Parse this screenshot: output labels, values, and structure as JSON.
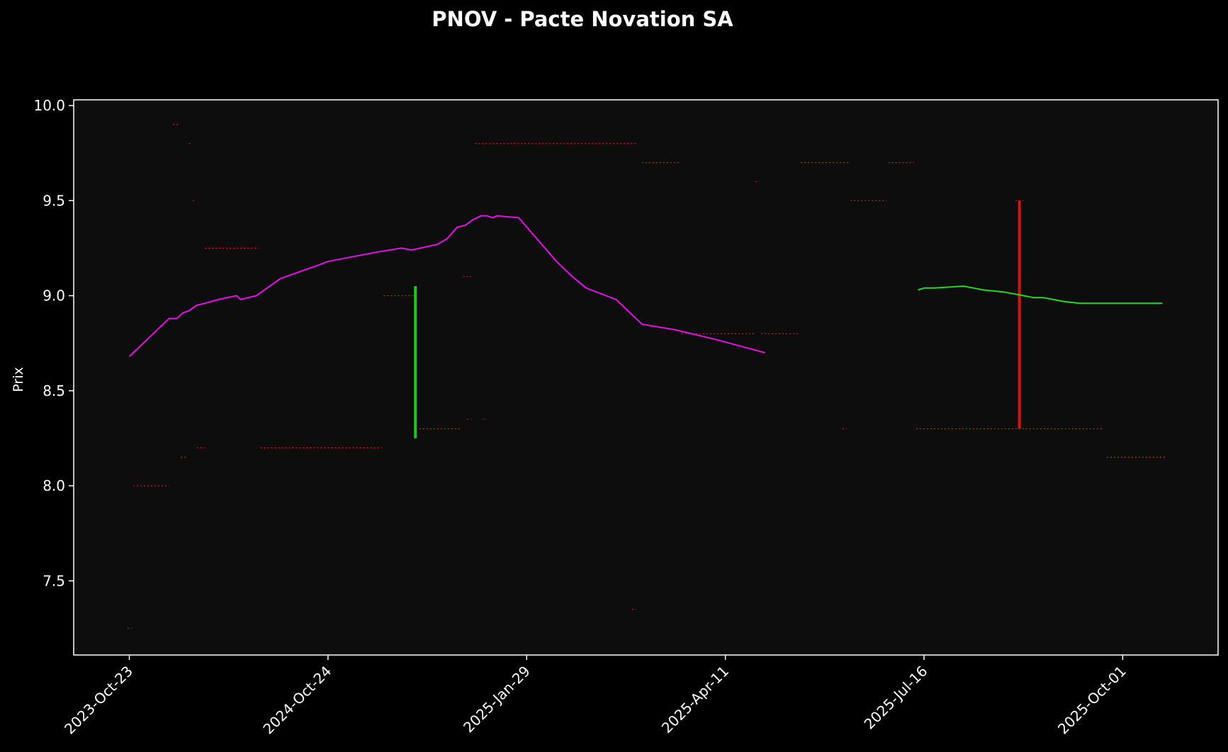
{
  "chart_data": {
    "type": "line",
    "title": "PNOV - Pacte Novation SA",
    "xlabel": "",
    "ylabel": "Prix",
    "x_tick_labels": [
      "2023-Oct-23",
      "2024-Oct-24",
      "2025-Jan-29",
      "2025-Apr-11",
      "2025-Jul-16",
      "2025-Oct-01"
    ],
    "x_axis_positions": {
      "first_tick": 0,
      "last_tick": 5,
      "range": [
        -0.28,
        5.48
      ]
    },
    "y_ticks": [
      7.5,
      8.0,
      8.5,
      9.0,
      9.5,
      10.0
    ],
    "y_tick_labels": [
      "7.5",
      "8.0",
      "8.5",
      "9.0",
      "9.5",
      "10.0"
    ],
    "ylim": [
      7.11,
      10.03
    ],
    "grid": false,
    "legend": "none",
    "colors": {
      "background": "#000000",
      "plot_background": "#0d0d0d",
      "axes": "#ffffff",
      "magenta_series": "#e60ee6",
      "green_series": "#1fdc1f",
      "green_bar": "#1ec81e",
      "red_bar": "#d21414",
      "red_levels": "#e61919"
    },
    "series": [
      {
        "color": "#e60ee6",
        "x": [
          0.0,
          0.02,
          0.2,
          0.24,
          0.27,
          0.3,
          0.34,
          0.38,
          0.45,
          0.54,
          0.56,
          0.6,
          0.64,
          0.76,
          0.95,
          1.0,
          1.1,
          1.2,
          1.25,
          1.37,
          1.42,
          1.55,
          1.6,
          1.65,
          1.69,
          1.73,
          1.77,
          1.8,
          1.83,
          1.85,
          1.96,
          2.15,
          2.23,
          2.3,
          2.45,
          2.58,
          2.75,
          2.95,
          3.2
        ],
        "values": [
          8.68,
          8.7,
          8.88,
          8.88,
          8.91,
          8.92,
          8.95,
          8.96,
          8.98,
          9.0,
          8.98,
          8.99,
          9.0,
          9.09,
          9.16,
          9.18,
          9.2,
          9.22,
          9.23,
          9.25,
          9.24,
          9.27,
          9.3,
          9.36,
          9.37,
          9.4,
          9.42,
          9.42,
          9.41,
          9.42,
          9.41,
          9.18,
          9.1,
          9.04,
          8.98,
          8.85,
          8.82,
          8.77,
          8.7
        ]
      },
      {
        "color": "#1fdc1f",
        "x": [
          3.97,
          4.0,
          4.05,
          4.2,
          4.25,
          4.3,
          4.4,
          4.5,
          4.55,
          4.6,
          4.65,
          4.7,
          4.78,
          4.85,
          5.0,
          5.2
        ],
        "values": [
          9.03,
          9.04,
          9.04,
          9.05,
          9.04,
          9.03,
          9.02,
          9.0,
          8.99,
          8.99,
          8.98,
          8.97,
          8.96,
          8.96,
          8.96,
          8.96
        ]
      }
    ],
    "bars": [
      {
        "x": 1.44,
        "low": 8.25,
        "high": 9.05,
        "color": "#1ec81e"
      },
      {
        "x": 4.48,
        "low": 8.3,
        "high": 9.5,
        "color": "#d21414"
      }
    ],
    "levels": [
      {
        "value": 8.0,
        "x_start": 0.02,
        "x_end": 0.2
      },
      {
        "value": 9.9,
        "x_start": 0.22,
        "x_end": 0.25
      },
      {
        "value": 9.8,
        "x_start": 0.3,
        "x_end": 0.31
      },
      {
        "value": 9.5,
        "x_start": 0.32,
        "x_end": 0.33
      },
      {
        "value": 8.15,
        "x_start": 0.26,
        "x_end": 0.29
      },
      {
        "value": 8.2,
        "x_start": 0.34,
        "x_end": 0.38
      },
      {
        "value": 9.25,
        "x_start": 0.38,
        "x_end": 0.65
      },
      {
        "value": 8.2,
        "x_start": 0.66,
        "x_end": 1.27
      },
      {
        "value": 9.0,
        "x_start": 1.28,
        "x_end": 1.43
      },
      {
        "value": 8.3,
        "x_start": 1.46,
        "x_end": 1.67
      },
      {
        "value": 9.1,
        "x_start": 1.68,
        "x_end": 1.72
      },
      {
        "value": 8.35,
        "x_start": 1.7,
        "x_end": 1.72
      },
      {
        "value": 8.35,
        "x_start": 1.78,
        "x_end": 1.8
      },
      {
        "value": 9.8,
        "x_start": 1.74,
        "x_end": 2.55
      },
      {
        "value": 7.35,
        "x_start": 2.53,
        "x_end": 2.55
      },
      {
        "value": 9.7,
        "x_start": 2.58,
        "x_end": 2.77
      },
      {
        "value": 8.8,
        "x_start": 2.78,
        "x_end": 3.15
      },
      {
        "value": 9.6,
        "x_start": 3.15,
        "x_end": 3.17
      },
      {
        "value": 8.8,
        "x_start": 3.18,
        "x_end": 3.37
      },
      {
        "value": 9.7,
        "x_start": 3.38,
        "x_end": 3.63
      },
      {
        "value": 8.3,
        "x_start": 3.59,
        "x_end": 3.61
      },
      {
        "value": 9.5,
        "x_start": 3.63,
        "x_end": 3.81
      },
      {
        "value": 9.7,
        "x_start": 3.82,
        "x_end": 3.95
      },
      {
        "value": 8.3,
        "x_start": 3.96,
        "x_end": 4.9
      },
      {
        "value": 9.5,
        "x_start": 4.46,
        "x_end": 4.5
      },
      {
        "value": 8.15,
        "x_start": 4.92,
        "x_end": 5.22
      },
      {
        "value": 7.25,
        "x_start": -0.01,
        "x_end": 0.01
      }
    ]
  }
}
